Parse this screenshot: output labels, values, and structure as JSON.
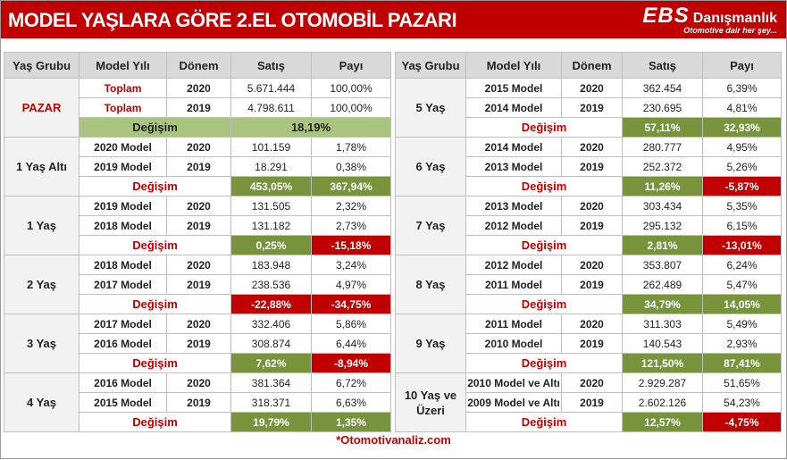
{
  "header": {
    "title": "MODEL YAŞLARA GÖRE 2.EL OTOMOBİL PAZARI",
    "logo": "EBS",
    "logo_name": "Danışmanlık",
    "tagline": "Otomotive dair her şey..."
  },
  "tables": [
    {
      "columns": [
        "Yaş Grubu",
        "Model Yılı",
        "Dönem",
        "Satış",
        "Payı"
      ],
      "groups": [
        {
          "label": "PAZAR",
          "rows": [
            [
              "Toplam",
              "2020",
              "5.671.444",
              "100,00%"
            ],
            [
              "Toplam",
              "2019",
              "4.798.611",
              "100,00%"
            ]
          ],
          "change": {
            "label": "Değişim",
            "value": "18,19%"
          }
        },
        {
          "label": "1 Yaş Altı",
          "rows": [
            [
              "2020 Model",
              "2020",
              "101.159",
              "1,78%"
            ],
            [
              "2019 Model",
              "2019",
              "18.291",
              "0,38%"
            ]
          ],
          "change": {
            "label": "Değişim",
            "sales": "453,05%",
            "share": "367,94%"
          }
        },
        {
          "label": "1 Yaş",
          "rows": [
            [
              "2019 Model",
              "2020",
              "131.505",
              "2,32%"
            ],
            [
              "2018 Model",
              "2019",
              "131.182",
              "2,73%"
            ]
          ],
          "change": {
            "label": "Değişim",
            "sales": "0,25%",
            "share": "-15,18%"
          }
        },
        {
          "label": "2 Yaş",
          "rows": [
            [
              "2018 Model",
              "2020",
              "183.948",
              "3,24%"
            ],
            [
              "2017 Model",
              "2019",
              "238.536",
              "4,97%"
            ]
          ],
          "change": {
            "label": "Değişim",
            "sales": "-22,88%",
            "share": "-34,75%"
          }
        },
        {
          "label": "3 Yaş",
          "rows": [
            [
              "2017 Model",
              "2020",
              "332.406",
              "5,86%"
            ],
            [
              "2016 Model",
              "2019",
              "308.874",
              "6,44%"
            ]
          ],
          "change": {
            "label": "Değişim",
            "sales": "7,62%",
            "share": "-8,94%"
          }
        },
        {
          "label": "4 Yaş",
          "rows": [
            [
              "2016 Model",
              "2020",
              "381.364",
              "6,72%"
            ],
            [
              "2015 Model",
              "2019",
              "318.371",
              "6,63%"
            ]
          ],
          "change": {
            "label": "Değişim",
            "sales": "19,79%",
            "share": "1,35%"
          }
        }
      ]
    },
    {
      "columns": [
        "Yaş Grubu",
        "Model Yılı",
        "Dönem",
        "Satış",
        "Payı"
      ],
      "groups": [
        {
          "label": "5 Yaş",
          "rows": [
            [
              "2015 Model",
              "2020",
              "362.454",
              "6,39%"
            ],
            [
              "2014 Model",
              "2019",
              "230.695",
              "4,81%"
            ]
          ],
          "change": {
            "label": "Değişim",
            "sales": "57,11%",
            "share": "32,93%"
          }
        },
        {
          "label": "6 Yaş",
          "rows": [
            [
              "2014 Model",
              "2020",
              "280.777",
              "4,95%"
            ],
            [
              "2013 Model",
              "2019",
              "252.372",
              "5,26%"
            ]
          ],
          "change": {
            "label": "Değişim",
            "sales": "11,26%",
            "share": "-5,87%"
          }
        },
        {
          "label": "7 Yaş",
          "rows": [
            [
              "2013 Model",
              "2020",
              "303.434",
              "5,35%"
            ],
            [
              "2012 Model",
              "2019",
              "295.132",
              "6,15%"
            ]
          ],
          "change": {
            "label": "Değişim",
            "sales": "2,81%",
            "share": "-13,01%"
          }
        },
        {
          "label": "8 Yaş",
          "rows": [
            [
              "2012 Model",
              "2020",
              "353.807",
              "6,24%"
            ],
            [
              "2011 Model",
              "2019",
              "262.489",
              "5,47%"
            ]
          ],
          "change": {
            "label": "Değişim",
            "sales": "34,79%",
            "share": "14,05%"
          }
        },
        {
          "label": "9 Yaş",
          "rows": [
            [
              "2011 Model",
              "2020",
              "311.303",
              "5,49%"
            ],
            [
              "2010 Model",
              "2019",
              "140.543",
              "2,93%"
            ]
          ],
          "change": {
            "label": "Değişim",
            "sales": "121,50%",
            "share": "87,41%"
          }
        },
        {
          "label": "10 Yaş ve Üzeri",
          "rows": [
            [
              "2010 Model ve Altı",
              "2020",
              "2.929.287",
              "51,65%"
            ],
            [
              "2009 Model ve Altı",
              "2019",
              "2.602.126",
              "54,23%"
            ]
          ],
          "change": {
            "label": "Değişim",
            "sales": "12,57%",
            "share": "-4,75%"
          }
        }
      ]
    }
  ],
  "footer": "*Otomotivanaliz.com"
}
